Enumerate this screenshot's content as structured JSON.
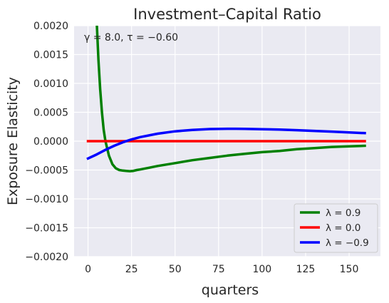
{
  "chart_data": {
    "type": "line",
    "title": "Investment–Capital Ratio",
    "xlabel": "quarters",
    "ylabel": "Exposure Elasticity",
    "annotation": "γ = 8.0, τ = −0.60",
    "xlim": [
      -8,
      168
    ],
    "ylim": [
      -0.002,
      0.002
    ],
    "xticks": [
      0,
      25,
      50,
      75,
      100,
      125,
      150
    ],
    "xtick_labels": [
      "0",
      "25",
      "50",
      "75",
      "100",
      "125",
      "150"
    ],
    "yticks": [
      -0.002,
      -0.0015,
      -0.001,
      -0.0005,
      0.0,
      0.0005,
      0.001,
      0.0015,
      0.002
    ],
    "ytick_labels": [
      "−0.0020",
      "−0.0015",
      "−0.0010",
      "−0.0005",
      "0.0000",
      "0.0005",
      "0.0010",
      "0.0015",
      "0.0020"
    ],
    "grid": true,
    "legend_position": "lower-right",
    "series": [
      {
        "name": "λ = 0.9",
        "color": "#008000",
        "x": [
          5.0,
          6,
          7,
          8,
          9,
          10,
          12,
          14,
          16,
          18,
          20,
          22,
          24,
          26,
          28,
          30,
          35,
          40,
          50,
          60,
          70,
          80,
          90,
          100,
          110,
          120,
          130,
          140,
          150,
          159
        ],
        "y": [
          0.00205,
          0.0014,
          0.0009,
          0.0005,
          0.0002,
          0.0,
          -0.00025,
          -0.0004,
          -0.00047,
          -0.0005,
          -0.00051,
          -0.000515,
          -0.00052,
          -0.000515,
          -0.0005,
          -0.00049,
          -0.00046,
          -0.00043,
          -0.00038,
          -0.00033,
          -0.00029,
          -0.00025,
          -0.00022,
          -0.00019,
          -0.00017,
          -0.00014,
          -0.00012,
          -0.0001,
          -9e-05,
          -8e-05
        ]
      },
      {
        "name": "λ = 0.0",
        "color": "#ff0000",
        "x": [
          0,
          159
        ],
        "y": [
          0.0,
          0.0
        ]
      },
      {
        "name": "λ = −0.9",
        "color": "#0000ff",
        "x": [
          0,
          5,
          10,
          15,
          20,
          25,
          30,
          40,
          50,
          60,
          70,
          80,
          85,
          90,
          100,
          110,
          120,
          130,
          140,
          150,
          159
        ],
        "y": [
          -0.0003,
          -0.00023,
          -0.00015,
          -8e-05,
          -2e-05,
          3e-05,
          7e-05,
          0.00013,
          0.00017,
          0.000195,
          0.00021,
          0.000215,
          0.000215,
          0.000213,
          0.000208,
          0.0002,
          0.00019,
          0.000178,
          0.000165,
          0.00015,
          0.00014
        ]
      }
    ]
  }
}
